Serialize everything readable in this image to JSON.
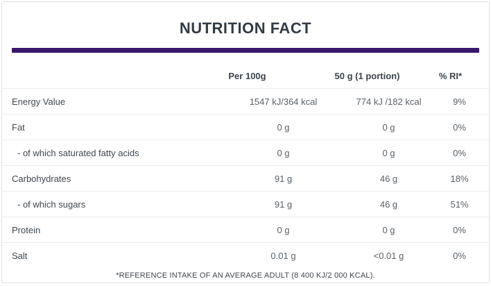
{
  "title": "NUTRITION FACT",
  "colors": {
    "accent_bar": "#38186d",
    "title_text": "#333b43",
    "header_text": "#3c434b",
    "label_text": "#3f464e",
    "value_text": "#5a6167",
    "row_separator": "#ececec",
    "card_border": "#e0e0e0"
  },
  "table": {
    "columns": [
      "",
      "Per 100g",
      "50 g (1 portion)",
      "% RI*"
    ],
    "rows": [
      {
        "label": "Energy Value",
        "per_100g": "1547 kJ/364 kcal",
        "per_portion": "774 kJ /182 kcal",
        "ri": "9%",
        "indent": false
      },
      {
        "label": "Fat",
        "per_100g": "0 g",
        "per_portion": "0 g",
        "ri": "0%",
        "indent": false
      },
      {
        "label": "- of which saturated fatty acids",
        "per_100g": "0 g",
        "per_portion": "0 g",
        "ri": "0%",
        "indent": true
      },
      {
        "label": "Carbohydrates",
        "per_100g": "91 g",
        "per_portion": "46 g",
        "ri": "18%",
        "indent": false
      },
      {
        "label": "- of which sugars",
        "per_100g": "91 g",
        "per_portion": "46 g",
        "ri": "51%",
        "indent": true
      },
      {
        "label": "Protein",
        "per_100g": "0 g",
        "per_portion": "0 g",
        "ri": "0%",
        "indent": false
      },
      {
        "label": "Salt",
        "per_100g": "0.01 g",
        "per_portion": "<0.01 g",
        "ri": "0%",
        "indent": false
      }
    ],
    "footnote": "*REFERENCE INTAKE OF AN AVERAGE ADULT (8 400 KJ/2 000 KCAL)."
  }
}
